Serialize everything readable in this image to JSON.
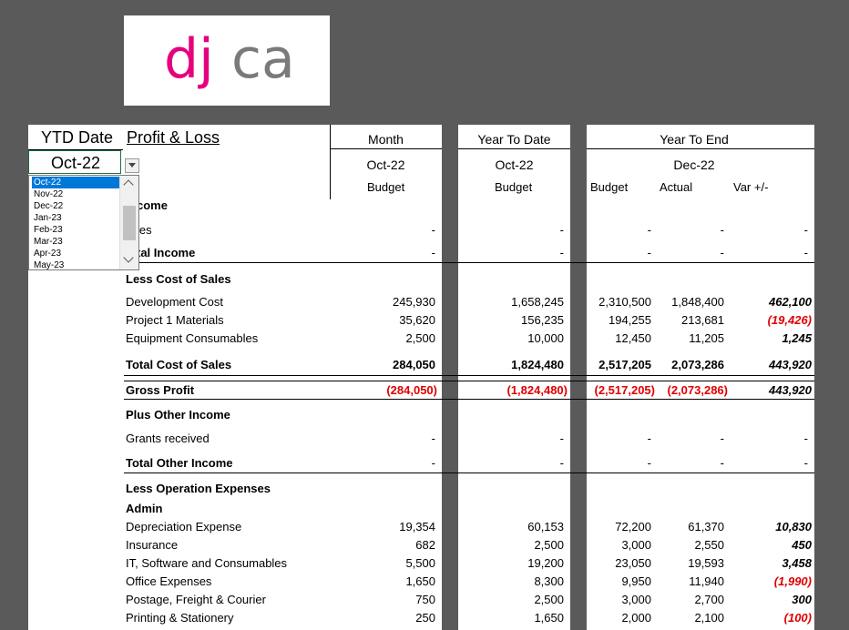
{
  "logo": {
    "text": "djca"
  },
  "ytd": {
    "label": "YTD Date",
    "value": "Oct-22"
  },
  "title": "Profit & Loss",
  "headers": {
    "month": "Month",
    "ytd": "Year To Date",
    "yte": "Year To End",
    "month_period": "Oct-22",
    "ytd_period": "Oct-22",
    "yte_period": "Dec-22",
    "budget": "Budget",
    "budget2": "Budget",
    "yte_budget": "Budget",
    "yte_actual": "Actual",
    "yte_var": "Var +/-"
  },
  "dropdown": {
    "options": [
      "Oct-22",
      "Nov-22",
      "Dec-22",
      "Jan-23",
      "Feb-23",
      "Mar-23",
      "Apr-23",
      "May-23"
    ],
    "selected": "Oct-22"
  },
  "rows": {
    "income_h": "come",
    "sales": "les",
    "total_income": "tal Income",
    "less_cos": "Less Cost of Sales",
    "dev": "Development Cost",
    "proj": "Project 1 Materials",
    "equip": "Equipment Consumables",
    "total_cos": "Total Cost of Sales",
    "gross": "Gross Profit",
    "plus_oi": "Plus Other Income",
    "grants": "Grants received",
    "total_oi": "Total Other Income",
    "less_oe": "Less Operation Expenses",
    "admin": "Admin",
    "dep": "Depreciation Expense",
    "ins": "Insurance",
    "it": "IT, Software and Consumables",
    "office": "Office Expenses",
    "postage": "Postage, Freight & Courier",
    "printing": "Printing & Stationery"
  },
  "values": {
    "dash": "-",
    "dev": [
      "245,930",
      "1,658,245",
      "2,310,500",
      "1,848,400",
      "462,100"
    ],
    "proj": [
      "35,620",
      "156,235",
      "194,255",
      "213,681",
      "(19,426)"
    ],
    "equip": [
      "2,500",
      "10,000",
      "12,450",
      "11,205",
      "1,245"
    ],
    "total_cos": [
      "284,050",
      "1,824,480",
      "2,517,205",
      "2,073,286",
      "443,920"
    ],
    "gross": [
      "(284,050)",
      "(1,824,480)",
      "(2,517,205)",
      "(2,073,286)",
      "443,920"
    ],
    "dep": [
      "19,354",
      "60,153",
      "72,200",
      "61,370",
      "10,830"
    ],
    "ins": [
      "682",
      "2,500",
      "3,000",
      "2,550",
      "450"
    ],
    "it": [
      "5,500",
      "19,200",
      "23,050",
      "19,593",
      "3,458"
    ],
    "office": [
      "1,650",
      "8,300",
      "9,950",
      "11,940",
      "(1,990)"
    ],
    "postage": [
      "750",
      "2,500",
      "3,000",
      "2,700",
      "300"
    ],
    "printing": [
      "250",
      "1,650",
      "2,000",
      "2,100",
      "(100)"
    ]
  },
  "colors": {
    "background": "#5a5a5a",
    "logo_pink": "#e6007e",
    "logo_gray": "#7a7a7a",
    "negative": "#e00000",
    "selection": "#0078d7"
  }
}
